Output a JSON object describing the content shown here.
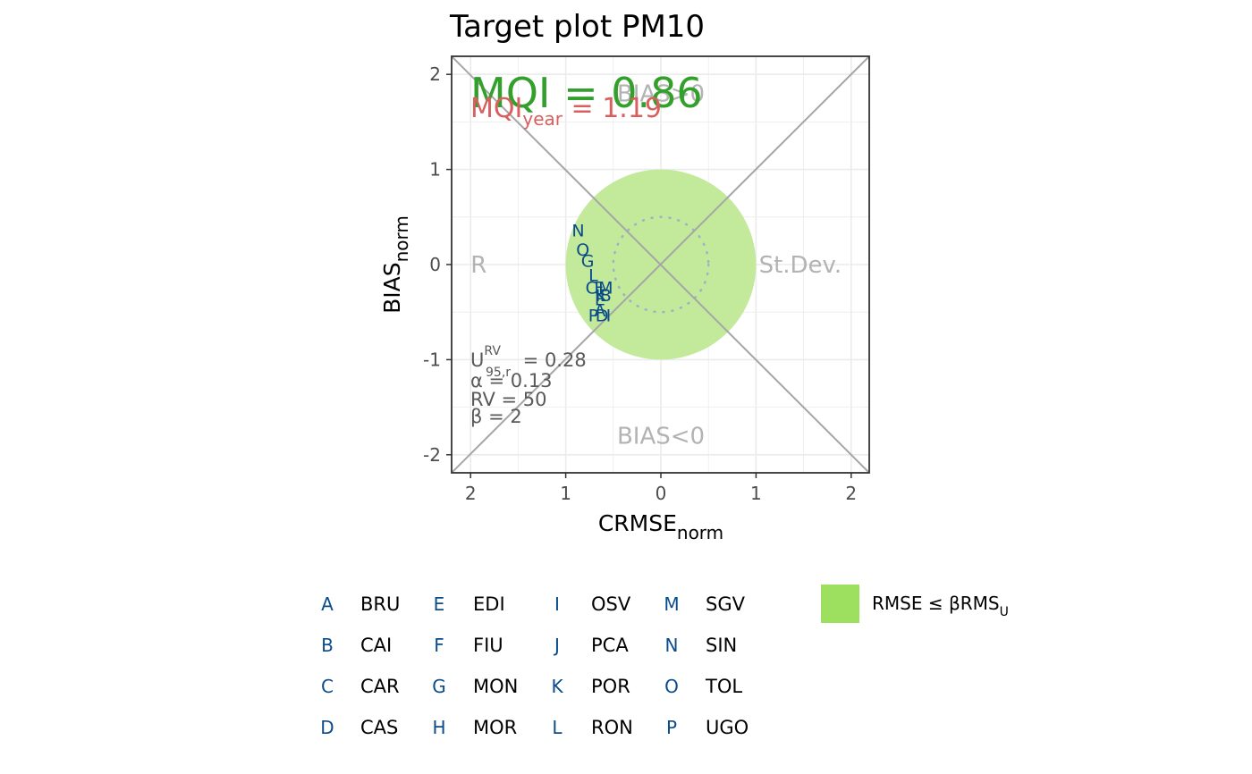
{
  "colors": {
    "mqi": "#33a02c",
    "mqi_year": "#d95f5f",
    "target_fill": "#c3e99a",
    "legend_fill": "#9ddf5e",
    "points": "#0a4c8a",
    "diagonals": "#a6a6a6",
    "region_labels": "#b3b3b3",
    "grid": "#ebebeb"
  },
  "chart_data": {
    "type": "scatter",
    "title": "Target plot PM10",
    "xlabel": "CRMSE",
    "xlabel_sub": "norm",
    "ylabel": "BIAS",
    "ylabel_sub": "norm",
    "xlim": [
      -2.2,
      2.2
    ],
    "ylim": [
      -2.2,
      2.2
    ],
    "x_tick_values": [
      -2,
      -1,
      0,
      1,
      2
    ],
    "x_tick_labels": [
      "2",
      "1",
      "0",
      "1",
      "2"
    ],
    "y_tick_values": [
      2,
      1,
      0,
      -1,
      -2
    ],
    "y_tick_labels": [
      "2",
      "1",
      "0",
      "-1",
      "-2"
    ],
    "grid": true,
    "target_radius": 1.0,
    "dotted_circle_radius": 0.5,
    "region_labels": {
      "top": "BIAS>0",
      "bottom": "BIAS<0",
      "left": "R",
      "right": "St.Dev."
    },
    "mqi": {
      "main": "MQI = 0.86",
      "year_prefix": "MQI",
      "year_sub": "year",
      "year_value": " = 1.19"
    },
    "params": {
      "u_main": "U",
      "u_sup": "RV",
      "u_sub": "95,r",
      "u_value": " = 0.28",
      "alpha": "α = 0.13",
      "rv": "RV = 50",
      "beta": "β = 2"
    },
    "points": [
      {
        "label": "N",
        "x": -0.87,
        "y": 0.36
      },
      {
        "label": "O",
        "x": -0.82,
        "y": 0.16
      },
      {
        "label": "G",
        "x": -0.77,
        "y": 0.04
      },
      {
        "label": "L",
        "x": -0.71,
        "y": -0.11
      },
      {
        "label": "C",
        "x": -0.73,
        "y": -0.24
      },
      {
        "label": "F",
        "x": -0.65,
        "y": -0.24
      },
      {
        "label": "M",
        "x": -0.58,
        "y": -0.24
      },
      {
        "label": "K",
        "x": -0.63,
        "y": -0.32
      },
      {
        "label": "B",
        "x": -0.58,
        "y": -0.32
      },
      {
        "label": "E",
        "x": -0.64,
        "y": -0.36
      },
      {
        "label": "A",
        "x": -0.64,
        "y": -0.48
      },
      {
        "label": "P",
        "x": -0.71,
        "y": -0.53
      },
      {
        "label": "D",
        "x": -0.62,
        "y": -0.53
      },
      {
        "label": "I",
        "x": -0.55,
        "y": -0.53
      }
    ],
    "legend": {
      "stations": [
        {
          "code": "A",
          "name": "BRU"
        },
        {
          "code": "B",
          "name": "CAI"
        },
        {
          "code": "C",
          "name": "CAR"
        },
        {
          "code": "D",
          "name": "CAS"
        },
        {
          "code": "E",
          "name": "EDI"
        },
        {
          "code": "F",
          "name": "FIU"
        },
        {
          "code": "G",
          "name": "MON"
        },
        {
          "code": "H",
          "name": "MOR"
        },
        {
          "code": "I",
          "name": "OSV"
        },
        {
          "code": "J",
          "name": "PCA"
        },
        {
          "code": "K",
          "name": "POR"
        },
        {
          "code": "L",
          "name": "RON"
        },
        {
          "code": "M",
          "name": "SGV"
        },
        {
          "code": "N",
          "name": "SIN"
        },
        {
          "code": "O",
          "name": "TOL"
        },
        {
          "code": "P",
          "name": "UGO"
        }
      ],
      "fill_label_main": "RMSE ≤ βRMS",
      "fill_label_sub": "U"
    }
  }
}
